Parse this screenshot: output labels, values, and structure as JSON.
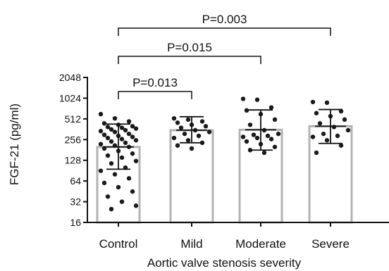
{
  "chart_data": {
    "type": "bar",
    "scale": "log2",
    "ylabel": "FGF-21 (pg/ml)",
    "xlabel": "Aortic valve stenosis severity",
    "ylim": [
      16,
      2048
    ],
    "yticks": [
      "16",
      "32",
      "64",
      "128",
      "256",
      "512",
      "1024",
      "2048"
    ],
    "categories": [
      "Control",
      "Mild",
      "Moderate",
      "Severe"
    ],
    "bars": [
      {
        "mean": 200,
        "sd_low": 95,
        "sd_high": 430
      },
      {
        "mean": 350,
        "sd_low": 230,
        "sd_high": 550
      },
      {
        "mean": 355,
        "sd_low": 180,
        "sd_high": 690
      },
      {
        "mean": 400,
        "sd_low": 225,
        "sd_high": 700
      }
    ],
    "points": [
      [
        600,
        520,
        470,
        440,
        420,
        400,
        390,
        380,
        370,
        360,
        350,
        340,
        330,
        310,
        300,
        290,
        280,
        270,
        260,
        250,
        240,
        230,
        220,
        210,
        200,
        190,
        175,
        160,
        150,
        140,
        125,
        115,
        100,
        90,
        80,
        70,
        60,
        52,
        45,
        38,
        32,
        28,
        25
      ],
      [
        520,
        500,
        470,
        450,
        420,
        400,
        380,
        350,
        330,
        310,
        290,
        270,
        250,
        230,
        210,
        190
      ],
      [
        1000,
        970,
        750,
        680,
        600,
        500,
        420,
        350,
        310,
        300,
        290,
        280,
        270,
        260,
        240,
        220,
        200,
        180,
        165
      ],
      [
        900,
        880,
        660,
        620,
        560,
        500,
        440,
        390,
        350,
        310,
        290,
        280,
        250,
        210,
        165
      ]
    ],
    "comparisons": [
      {
        "from": 0,
        "to": 1,
        "label": "P=0.013"
      },
      {
        "from": 0,
        "to": 2,
        "label": "P=0.015"
      },
      {
        "from": 0,
        "to": 3,
        "label": "P=0.003"
      }
    ]
  }
}
